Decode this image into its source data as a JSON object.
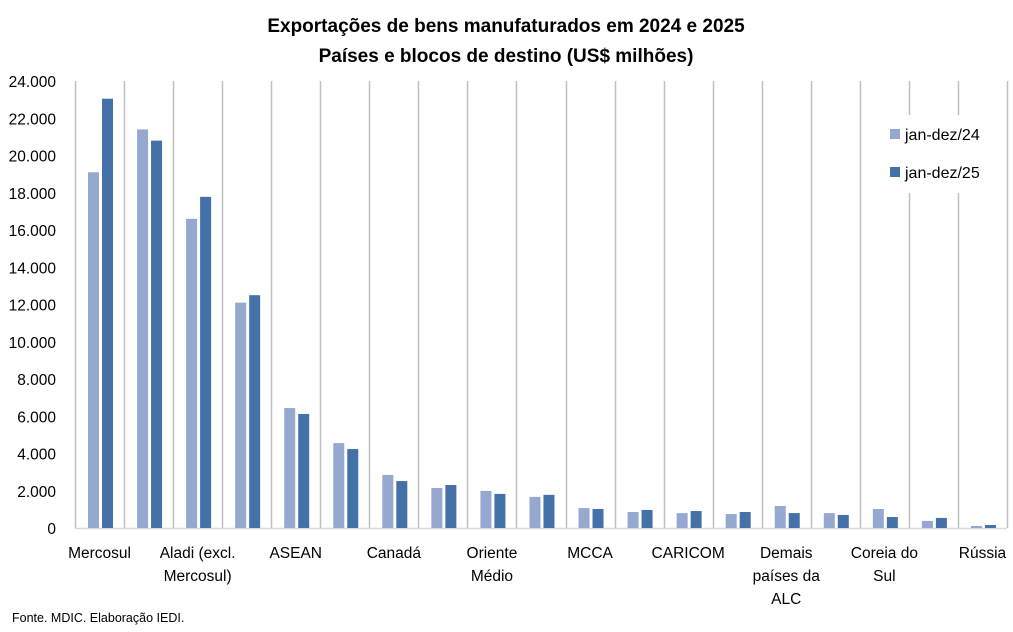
{
  "chart_data": {
    "type": "bar",
    "title": "Exportações de bens manufaturados em 2024 e 2025",
    "subtitle": "Países e blocos de destino (US$ milhões)",
    "xlabel": "",
    "ylabel": "",
    "ylim": [
      0,
      24000
    ],
    "yticks": [
      0,
      2000,
      4000,
      6000,
      8000,
      10000,
      12000,
      14000,
      16000,
      18000,
      20000,
      22000,
      24000
    ],
    "ytick_labels": [
      "0",
      "2.000",
      "4.000",
      "6.000",
      "8.000",
      "10.000",
      "12.000",
      "14.000",
      "16.000",
      "18.000",
      "20.000",
      "22.000",
      "24.000"
    ],
    "grid": "vertical category separators",
    "legend_position": "top-right",
    "categories": [
      [
        "Mercosul"
      ],
      [
        ""
      ],
      [
        "Aladi (excl.",
        "Mercosul)"
      ],
      [
        ""
      ],
      [
        "ASEAN"
      ],
      [
        ""
      ],
      [
        "Canadá"
      ],
      [
        ""
      ],
      [
        "Oriente",
        "Médio"
      ],
      [
        ""
      ],
      [
        "MCCA"
      ],
      [
        ""
      ],
      [
        "CARICOM"
      ],
      [
        ""
      ],
      [
        "Demais",
        "países da",
        "ALC"
      ],
      [
        ""
      ],
      [
        "Coreia do",
        "Sul"
      ],
      [
        ""
      ],
      [
        "Rússia"
      ]
    ],
    "series": [
      {
        "name": "jan-dez/24",
        "color": "#95A9D0",
        "values": [
          19100,
          21400,
          16600,
          12100,
          6440,
          4560,
          2850,
          2150,
          1990,
          1670,
          1070,
          860,
          800,
          750,
          1180,
          800,
          1020,
          380,
          110
        ]
      },
      {
        "name": "jan-dez/25",
        "color": "#4472A8",
        "values": [
          23050,
          20800,
          17780,
          12500,
          6120,
          4240,
          2520,
          2310,
          1830,
          1780,
          1020,
          970,
          910,
          860,
          800,
          700,
          590,
          540,
          160
        ]
      }
    ]
  },
  "footer": {
    "source": "Fonte. MDIC. Elaboração IEDI."
  }
}
